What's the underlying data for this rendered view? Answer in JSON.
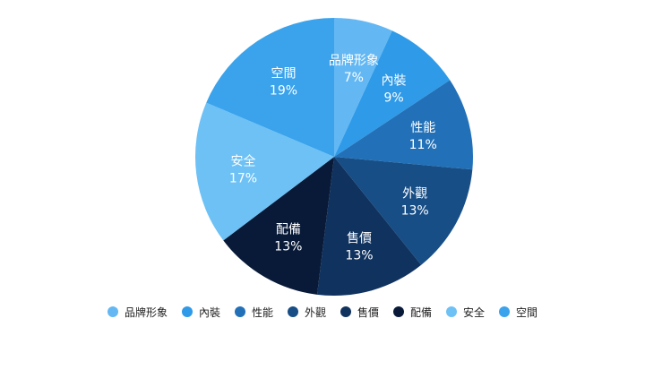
{
  "chart_data": {
    "type": "pie",
    "title": "",
    "legend_position": "bottom",
    "start_angle_deg": 0,
    "direction": "clockwise",
    "slices": [
      {
        "label": "品牌形象",
        "value": 7,
        "value_label": "7%",
        "color": "#63b8f4"
      },
      {
        "label": "內裝",
        "value": 9,
        "value_label": "9%",
        "color": "#2f9ae8"
      },
      {
        "label": "性能",
        "value": 11,
        "value_label": "11%",
        "color": "#2271b8"
      },
      {
        "label": "外觀",
        "value": 13,
        "value_label": "13%",
        "color": "#174e86"
      },
      {
        "label": "售價",
        "value": 13,
        "value_label": "13%",
        "color": "#10325f"
      },
      {
        "label": "配備",
        "value": 13,
        "value_label": "13%",
        "color": "#081a38"
      },
      {
        "label": "安全",
        "value": 17,
        "value_label": "17%",
        "color": "#6ec1f5"
      },
      {
        "label": "空間",
        "value": 19,
        "value_label": "19%",
        "color": "#3aa3ec"
      }
    ]
  }
}
